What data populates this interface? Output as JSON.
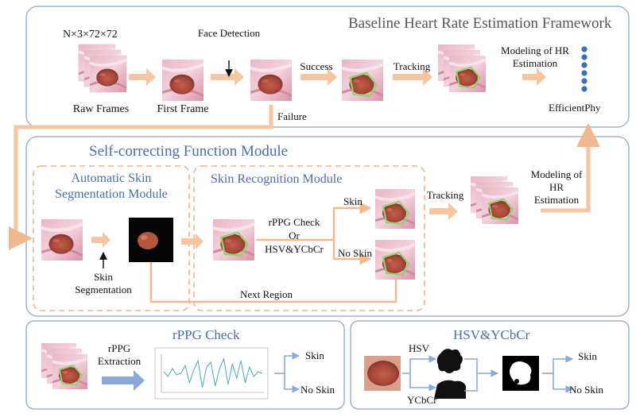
{
  "baseline": {
    "title": "Baseline Heart Rate Estimation Framework",
    "dims": "N×3×72×72",
    "raw_frames": "Raw Frames",
    "first_frame": "First Frame",
    "face_detection": "Face Detection",
    "success": "Success",
    "tracking": "Tracking",
    "modeling": "Modeling of HR Estimation",
    "failure": "Failure",
    "model_name": "EfficientPhy"
  },
  "self_correcting": {
    "title": "Self-correcting Function Module",
    "auto_skin_title": "Automatic Skin Segmentation Module",
    "skin_recog_title": "Skin Recognition Module",
    "skin_segmentation": "Skin Segmentation",
    "check_label": "rPPG Check",
    "or_label": "Or",
    "hsv_label": "HSV&YCbCr",
    "skin": "Skin",
    "no_skin": "No Skin",
    "next_region": "Next Region",
    "tracking": "Tracking",
    "modeling": "Modeling of HR Estimation"
  },
  "rppg_check": {
    "title": "rPPG Check",
    "extraction": "rPPG Extraction",
    "skin": "Skin",
    "no_skin": "No Skin",
    "signal": [
      0.1,
      -0.2,
      0.3,
      -0.1,
      0.0,
      0.5,
      -0.6,
      0.2,
      0.8,
      -0.9,
      0.4,
      0.7,
      -0.8,
      0.3,
      0.9,
      -0.7,
      0.6,
      -0.3,
      0.8,
      -0.6,
      0.4,
      -0.2,
      0.1,
      0.0
    ]
  },
  "hsv_ycbcr": {
    "title": "HSV&YCbCr",
    "hsv": "HSV",
    "ycbcr": "YCbCr",
    "skin": "Skin",
    "no_skin": "No Skin"
  },
  "colors": {
    "arrow_orange": "#f6c6a2",
    "dashed_orange": "#f0b48a",
    "panel_border": "#9fb3cc",
    "arrow_blue": "#8aa8d8",
    "title_blue": "#4a6fa5",
    "dot_blue": "#3a6fb5"
  }
}
